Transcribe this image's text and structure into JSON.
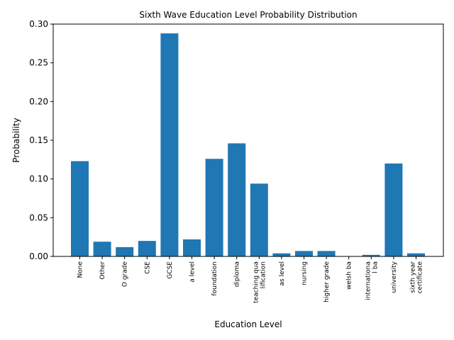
{
  "chart_data": {
    "type": "bar",
    "title": "Sixth Wave Education Level Probability Distribution",
    "xlabel": "Education Level",
    "ylabel": "Probability",
    "ylim": [
      0,
      0.3
    ],
    "yticks": [
      "0.00",
      "0.05",
      "0.10",
      "0.15",
      "0.20",
      "0.25",
      "0.30"
    ],
    "categories": [
      [
        "None"
      ],
      [
        "Other"
      ],
      [
        "O grade"
      ],
      [
        "CSE"
      ],
      [
        "GCSE"
      ],
      [
        "a level"
      ],
      [
        "foundation"
      ],
      [
        "diploma"
      ],
      [
        "teaching qua",
        "lification"
      ],
      [
        "as level"
      ],
      [
        "nursing"
      ],
      [
        "higher grade"
      ],
      [
        "welsh ba"
      ],
      [
        "internationa",
        "l ba"
      ],
      [
        "university"
      ],
      [
        "sixth year",
        "certificate"
      ]
    ],
    "values": [
      0.123,
      0.019,
      0.012,
      0.02,
      0.288,
      0.022,
      0.126,
      0.146,
      0.094,
      0.004,
      0.007,
      0.007,
      0.0,
      0.002,
      0.12,
      0.004
    ],
    "grid": false,
    "bar_color": "#1f77b4"
  }
}
